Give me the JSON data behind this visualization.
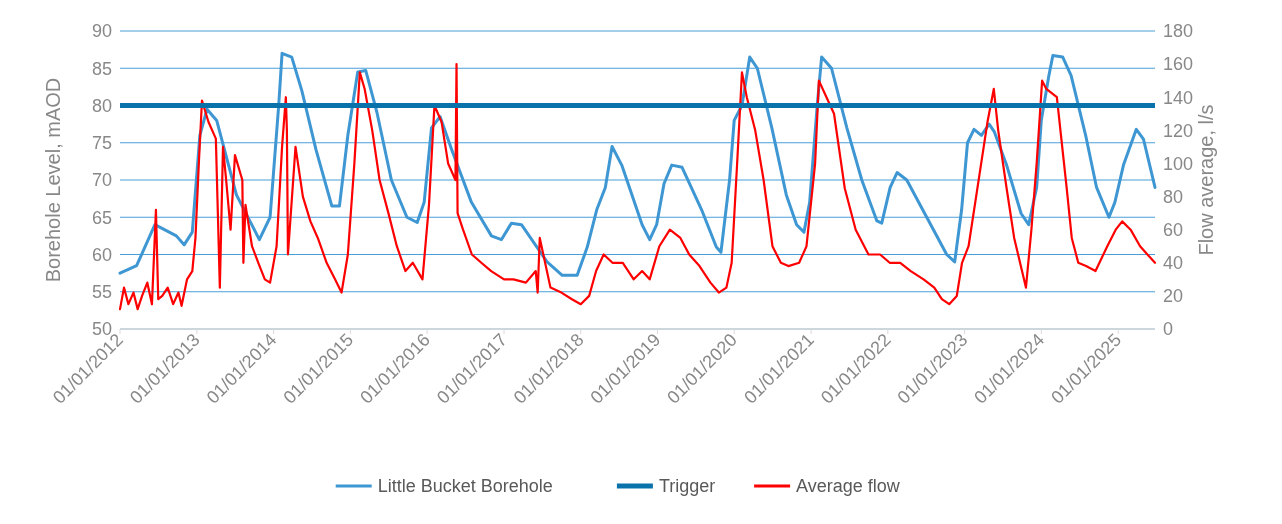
{
  "chart_data": {
    "type": "line",
    "ylabel": "Borehole Level, mAOD",
    "y2label": "Flow average, l/s",
    "xlim": [
      "2012-01-01",
      "2025-06-25"
    ],
    "xticks": [
      {
        "value": "2012-01-01",
        "label": "01/01/2012"
      },
      {
        "value": "2013-01-01",
        "label": "01/01/2013"
      },
      {
        "value": "2014-01-01",
        "label": "01/01/2014"
      },
      {
        "value": "2015-01-01",
        "label": "01/01/2015"
      },
      {
        "value": "2016-01-01",
        "label": "01/01/2016"
      },
      {
        "value": "2017-01-01",
        "label": "01/01/2017"
      },
      {
        "value": "2018-01-01",
        "label": "01/01/2018"
      },
      {
        "value": "2019-01-01",
        "label": "01/01/2019"
      },
      {
        "value": "2020-01-01",
        "label": "01/01/2020"
      },
      {
        "value": "2021-01-01",
        "label": "01/01/2021"
      },
      {
        "value": "2022-01-01",
        "label": "01/01/2022"
      },
      {
        "value": "2023-01-01",
        "label": "01/01/2023"
      },
      {
        "value": "2024-01-01",
        "label": "01/01/2024"
      },
      {
        "value": "2025-01-01",
        "label": "01/01/2025"
      }
    ],
    "ylim": [
      50,
      90
    ],
    "yticks": [
      50,
      55,
      60,
      65,
      70,
      75,
      80,
      85,
      90
    ],
    "y2lim": [
      0,
      180
    ],
    "y2ticks": [
      0,
      20,
      40,
      60,
      80,
      100,
      120,
      140,
      160,
      180
    ],
    "grid": "y",
    "legend": "bottom",
    "ref_lines": [
      {
        "axis": "y",
        "value": 80,
        "label": "Trigger",
        "color": "#0a72aa"
      }
    ],
    "series": [
      {
        "name": "Little Bucket Borehole",
        "color": "#3e97d3",
        "x": [
          "2012-01-01",
          "2012-03-20",
          "2012-06-15",
          "2012-09-25",
          "2012-11-01",
          "2012-12-10",
          "2013-01-15",
          "2013-02-18",
          "2013-04-05",
          "2013-07-08",
          "2013-10-25",
          "2013-12-15",
          "2014-01-25",
          "2014-02-10",
          "2014-03-28",
          "2014-05-15",
          "2014-07-22",
          "2014-10-05",
          "2014-11-10",
          "2014-12-20",
          "2015-02-05",
          "2015-03-15",
          "2015-05-08",
          "2015-07-15",
          "2015-09-27",
          "2015-11-15",
          "2015-12-18",
          "2016-01-22",
          "2016-03-03",
          "2016-04-28",
          "2016-07-30",
          "2016-11-02",
          "2016-12-20",
          "2017-02-05",
          "2017-03-25",
          "2017-07-25",
          "2017-10-05",
          "2017-12-15",
          "2018-02-01",
          "2018-03-18",
          "2018-04-28",
          "2018-05-30",
          "2018-07-15",
          "2018-10-20",
          "2018-11-25",
          "2018-12-28",
          "2019-02-01",
          "2019-03-10",
          "2019-04-28",
          "2019-07-30",
          "2019-10-08",
          "2019-10-30",
          "2019-12-10",
          "2020-01-01",
          "2020-02-07",
          "2020-03-15",
          "2020-04-20",
          "2020-06-28",
          "2020-09-05",
          "2020-10-24",
          "2020-11-28",
          "2020-12-25",
          "2021-01-30",
          "2021-02-20",
          "2021-04-08",
          "2021-06-20",
          "2021-08-30",
          "2021-11-10",
          "2021-12-03",
          "2022-01-12",
          "2022-02-14",
          "2022-04-01",
          "2022-07-05",
          "2022-10-08",
          "2022-11-15",
          "2022-12-18",
          "2023-01-15",
          "2023-02-15",
          "2023-03-22",
          "2023-04-28",
          "2023-05-22",
          "2023-07-20",
          "2023-09-27",
          "2023-11-02",
          "2023-12-10",
          "2024-01-01",
          "2024-02-06",
          "2024-02-25",
          "2024-04-12",
          "2024-05-22",
          "2024-07-30",
          "2024-09-20",
          "2024-11-18",
          "2024-12-16",
          "2025-01-26",
          "2025-03-28",
          "2025-05-01",
          "2025-06-25"
        ],
        "values": [
          57.5,
          58.5,
          64,
          62.5,
          61.3,
          63,
          76,
          79.5,
          78,
          68,
          62,
          65,
          80,
          87,
          86.5,
          82,
          74,
          66.5,
          66.5,
          76,
          84.5,
          84.7,
          79,
          70,
          65,
          64.3,
          67,
          77,
          78.5,
          74,
          67,
          62.5,
          62,
          64.2,
          64,
          59,
          57.2,
          57.2,
          61,
          66,
          69,
          74.5,
          72,
          64,
          62,
          64,
          69.5,
          72,
          71.7,
          66,
          61,
          60.3,
          70,
          78,
          80,
          86.5,
          85,
          77,
          68,
          64,
          63,
          67,
          80,
          86.5,
          85,
          77,
          70,
          64.5,
          64.2,
          69,
          71,
          70,
          65,
          60,
          59,
          66,
          75,
          76.8,
          76,
          77.5,
          76.5,
          72,
          65.5,
          64,
          69,
          78,
          84,
          86.7,
          86.5,
          84,
          76,
          69,
          65,
          67,
          72,
          76.8,
          75.5,
          69
        ]
      },
      {
        "name": "Average flow",
        "color": "#ff0000",
        "axis": "y2",
        "x": [
          "2012-01-01",
          "2012-01-20",
          "2012-02-10",
          "2012-03-05",
          "2012-03-25",
          "2012-04-15",
          "2012-05-10",
          "2012-06-01",
          "2012-06-20",
          "2012-07-01",
          "2012-07-20",
          "2012-08-15",
          "2012-09-10",
          "2012-10-05",
          "2012-10-20",
          "2012-11-15",
          "2012-12-10",
          "2012-12-25",
          "2013-01-10",
          "2013-01-25",
          "2013-02-25",
          "2013-04-01",
          "2013-04-20",
          "2013-05-05",
          "2013-05-20",
          "2013-06-10",
          "2013-07-01",
          "2013-08-05",
          "2013-08-10",
          "2013-08-20",
          "2013-09-20",
          "2013-10-20",
          "2013-11-20",
          "2013-12-15",
          "2014-01-15",
          "2014-02-10",
          "2014-02-28",
          "2014-03-05",
          "2014-03-10",
          "2014-04-15",
          "2014-05-20",
          "2014-06-25",
          "2014-07-30",
          "2014-09-10",
          "2014-10-20",
          "2014-11-20",
          "2014-12-20",
          "2015-01-20",
          "2015-02-15",
          "2015-03-10",
          "2015-04-15",
          "2015-05-20",
          "2015-07-01",
          "2015-08-10",
          "2015-09-20",
          "2015-10-25",
          "2015-12-10",
          "2016-01-10",
          "2016-02-05",
          "2016-03-10",
          "2016-04-10",
          "2016-05-15",
          "2016-05-20",
          "2016-05-25",
          "2016-06-20",
          "2016-08-01",
          "2016-09-15",
          "2016-11-01",
          "2017-01-01",
          "2017-02-15",
          "2017-04-15",
          "2017-06-01",
          "2017-06-10",
          "2017-06-20",
          "2017-08-10",
          "2017-10-01",
          "2017-11-20",
          "2018-01-01",
          "2018-02-10",
          "2018-03-15",
          "2018-04-20",
          "2018-06-01",
          "2018-07-20",
          "2018-09-10",
          "2018-10-20",
          "2018-11-25",
          "2019-01-10",
          "2019-03-01",
          "2019-04-20",
          "2019-06-01",
          "2019-07-20",
          "2019-09-10",
          "2019-10-20",
          "2019-11-25",
          "2019-12-20",
          "2020-01-15",
          "2020-02-07",
          "2020-03-01",
          "2020-04-10",
          "2020-05-20",
          "2020-07-01",
          "2020-08-10",
          "2020-09-15",
          "2020-11-05",
          "2020-12-10",
          "2021-01-20",
          "2021-02-07",
          "2021-03-15",
          "2021-04-20",
          "2021-06-10",
          "2021-08-01",
          "2021-10-01",
          "2021-11-25",
          "2022-01-10",
          "2022-03-01",
          "2022-04-20",
          "2022-06-20",
          "2022-08-10",
          "2022-09-15",
          "2022-10-20",
          "2022-11-25",
          "2022-12-20",
          "2023-01-20",
          "2023-02-25",
          "2023-04-20",
          "2023-05-20",
          "2023-06-10",
          "2023-07-20",
          "2023-08-25",
          "2023-10-20",
          "2023-11-15",
          "2023-12-10",
          "2024-01-05",
          "2024-01-25",
          "2024-03-15",
          "2024-05-01",
          "2024-05-25",
          "2024-06-25",
          "2024-08-01",
          "2024-09-15",
          "2024-11-10",
          "2024-12-20",
          "2025-01-20",
          "2025-03-01",
          "2025-04-15",
          "2025-05-20",
          "2025-06-25"
        ],
        "values": [
          12,
          25,
          15,
          22,
          12,
          20,
          28,
          15,
          72,
          18,
          20,
          25,
          15,
          22,
          14,
          30,
          35,
          55,
          100,
          138,
          125,
          115,
          25,
          110,
          90,
          60,
          105,
          90,
          40,
          75,
          50,
          40,
          30,
          28,
          50,
          110,
          140,
          120,
          45,
          110,
          80,
          65,
          55,
          40,
          30,
          22,
          45,
          100,
          155,
          145,
          120,
          90,
          70,
          50,
          35,
          40,
          30,
          75,
          135,
          125,
          100,
          90,
          160,
          70,
          60,
          45,
          40,
          35,
          30,
          30,
          28,
          35,
          22,
          55,
          25,
          22,
          18,
          15,
          20,
          35,
          45,
          40,
          40,
          30,
          35,
          30,
          50,
          60,
          55,
          45,
          38,
          28,
          22,
          25,
          40,
          100,
          155,
          140,
          120,
          90,
          50,
          40,
          38,
          40,
          50,
          100,
          150,
          140,
          130,
          85,
          60,
          45,
          45,
          40,
          40,
          35,
          30,
          25,
          18,
          15,
          20,
          40,
          50,
          80,
          125,
          145,
          120,
          85,
          55,
          25,
          60,
          100,
          150,
          145,
          140,
          85,
          55,
          40,
          38,
          35,
          50,
          60,
          65,
          60,
          50,
          45,
          40
        ]
      }
    ]
  }
}
